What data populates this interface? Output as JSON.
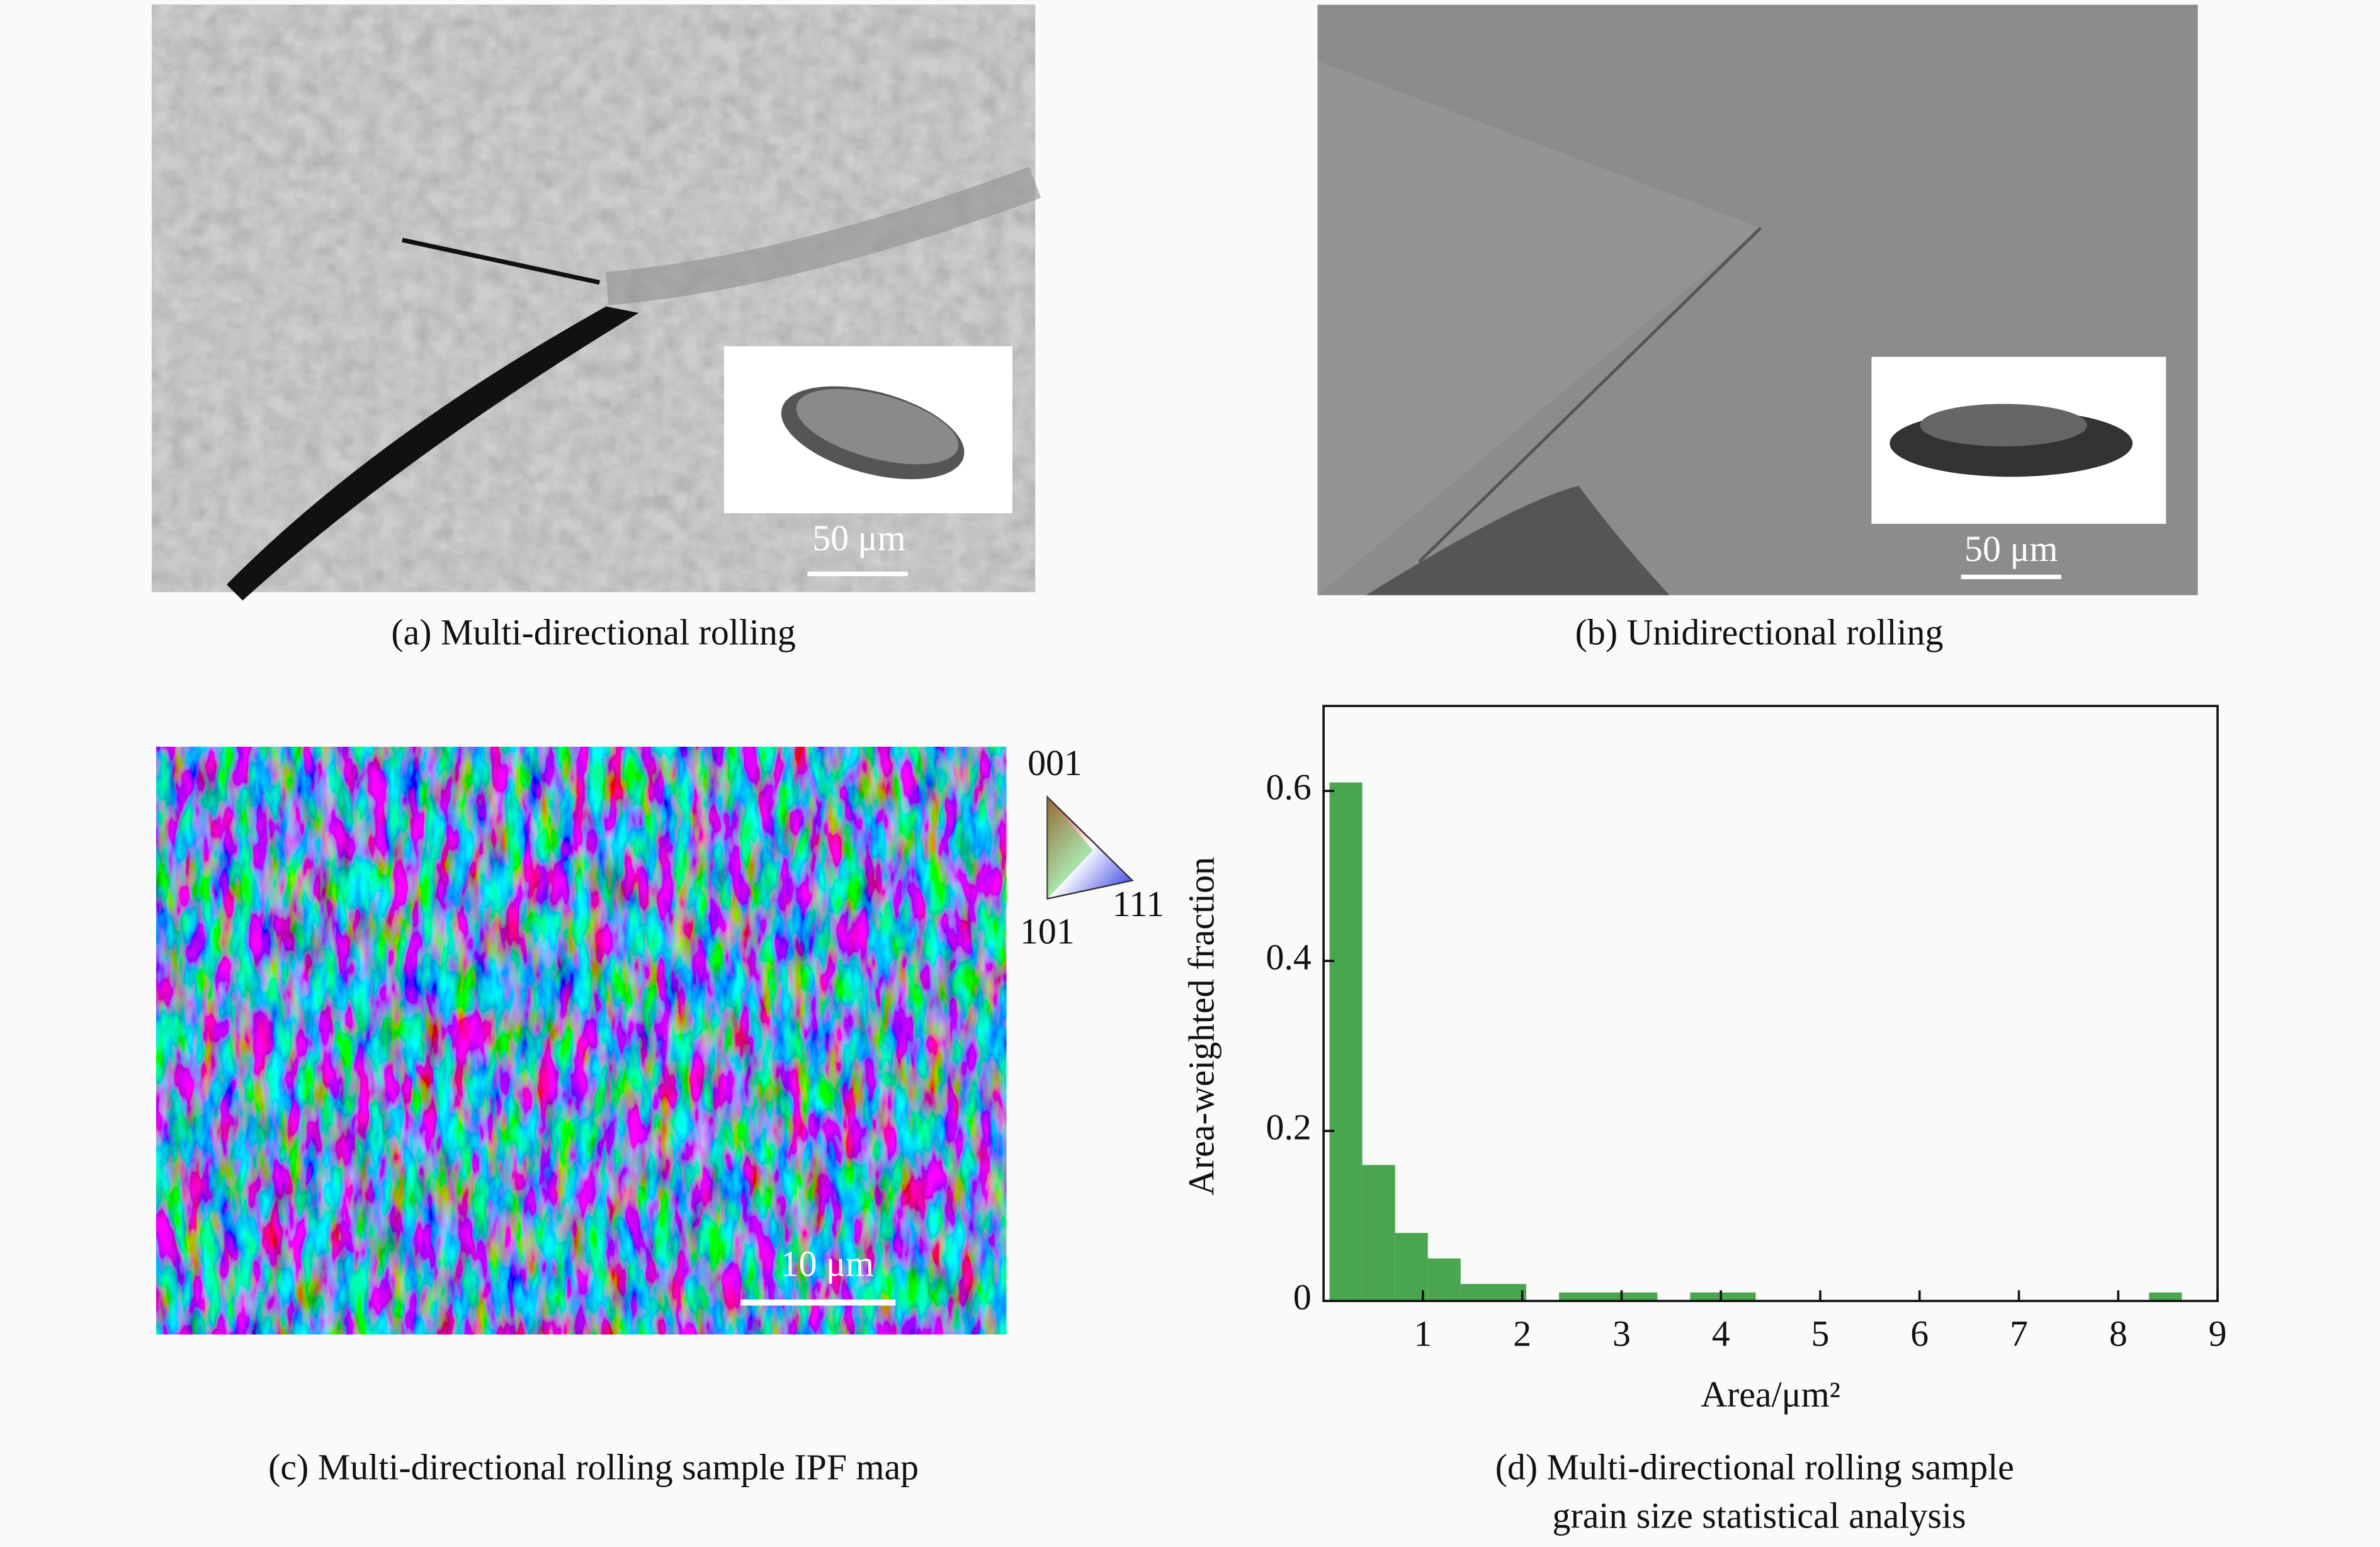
{
  "panels": {
    "a": {
      "caption": "(a) Multi-directional rolling",
      "scale_bar": "50 μm"
    },
    "b": {
      "caption": "(b) Unidirectional rolling",
      "scale_bar": "50 μm"
    },
    "c": {
      "caption": "(c) Multi-directional rolling sample IPF map",
      "scale_bar": "10 μm",
      "legend": [
        "001",
        "101",
        "111"
      ]
    },
    "d": {
      "caption": [
        "(d) Multi-directional rolling sample",
        "grain size statistical analysis"
      ]
    }
  },
  "chart_data": {
    "type": "histogram",
    "xlabel": "Area/μm²",
    "ylabel": "Area-weighted fraction",
    "color": "#4aa54f",
    "bins": [
      0.06,
      0.39,
      0.72,
      1.05,
      1.38,
      1.71,
      2.04,
      2.37,
      2.7,
      3.03,
      3.36,
      3.69,
      4.02,
      4.35,
      4.68,
      5.01,
      5.34,
      5.67,
      6,
      6.33,
      6.66,
      6.99,
      7.32,
      7.65,
      7.98,
      8.31,
      8.64,
      8.97
    ],
    "values": [
      0.61,
      0.16,
      0.08,
      0.05,
      0.02,
      0.02,
      0,
      0.01,
      0.01,
      0.01,
      0,
      0.01,
      0.01,
      0,
      0,
      0,
      0,
      0,
      0,
      0,
      0,
      0,
      0,
      0,
      0,
      0.01,
      0
    ],
    "xlim": [
      0,
      9
    ],
    "ylim": [
      0,
      0.7
    ],
    "xticks": [
      1,
      2,
      3,
      4,
      5,
      6,
      7,
      8,
      9
    ],
    "yticks": [
      0,
      0.2,
      0.4,
      0.6
    ]
  }
}
